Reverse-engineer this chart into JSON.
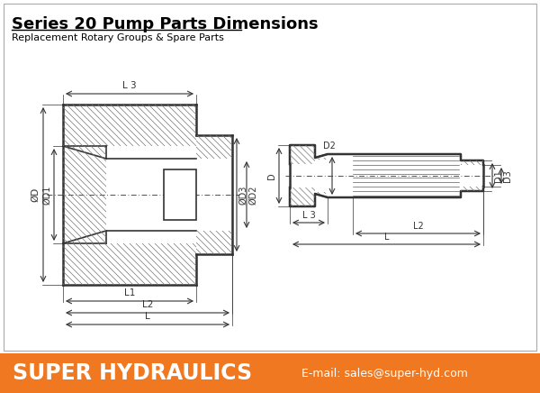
{
  "title": "Series 20 Pump Parts Dimensions",
  "subtitle": "Replacement Rotary Groups & Spare Parts",
  "footer_bg": "#F07820",
  "footer_text": "SUPER HYDRAULICS",
  "footer_email": "E-mail: sales@super-hyd.com",
  "bg_color": "#FFFFFF",
  "drawing_color": "#333333",
  "hatch_color": "#777777",
  "dim_color": "#333333"
}
